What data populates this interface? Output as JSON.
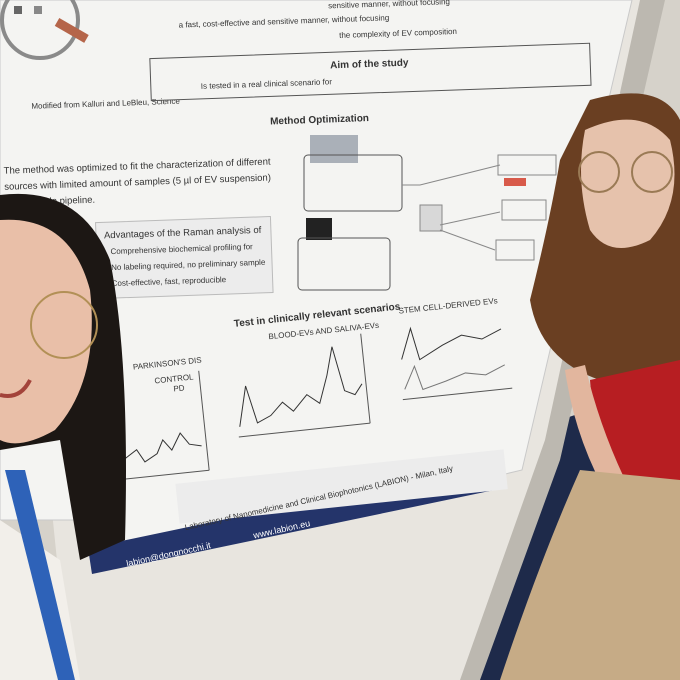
{
  "poster": {
    "intro_lines": [
      "sensitive manner, without focusing",
      "a fast, cost-effective and sensitive manner, without focusing",
      "the complexity of EV composition"
    ],
    "figure_credit": "Modified from Kalluri and LeBleu, Science",
    "aim_heading": "Aim of the study",
    "aim_text": "Is tested in a real clinical scenario for",
    "method_heading": "Method Optimization",
    "method_lines": [
      "The method was optimized to fit the characterization of different",
      "sources with limited amount of samples (5 µl of EV suspension)",
      "automatable pipeline."
    ],
    "advantages": {
      "heading": "Advantages of the Raman analysis of",
      "items": [
        "Comprehensive biochemical profiling for",
        "No labeling required, no preliminary sample",
        "Cost-effective, fast, reproducible"
      ]
    },
    "test_heading": "Test in clinically relevant scenarios",
    "panels": [
      {
        "title": "PARKINSON'S DIS",
        "legend": [
          "CONTROL",
          "PD"
        ]
      },
      {
        "title": "BLOOD-EVs AND SALIVA-EVs",
        "legend": []
      },
      {
        "title": "STEM CELL-DERIVED EVs",
        "legend": []
      }
    ],
    "footer": {
      "lab": "Laboratory of Nanomedicine and Clinical Biophotonics (LABION) - Milan, Italy",
      "website": "www.labion.eu",
      "email": "labion@dongnocchi.it"
    }
  }
}
